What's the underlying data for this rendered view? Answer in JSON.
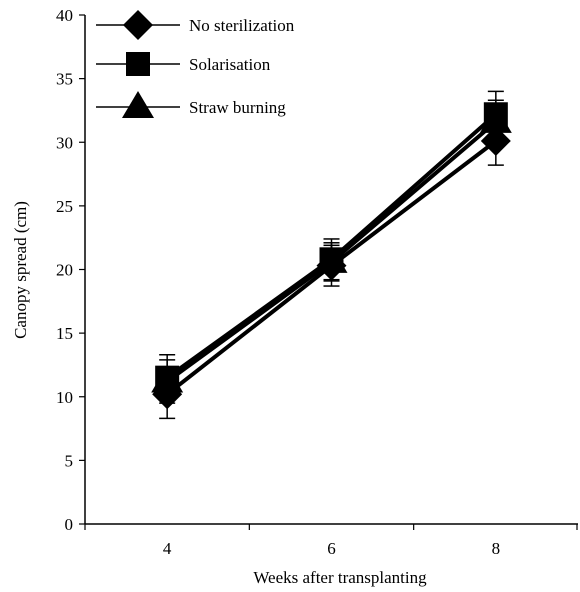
{
  "chart_data": {
    "type": "line",
    "xlabel": "Weeks after transplanting",
    "ylabel": "Canopy spread (cm)",
    "x": [
      4,
      6,
      8
    ],
    "x_tick_labels": [
      "4",
      "6",
      "8"
    ],
    "ylim": [
      0,
      40
    ],
    "y_ticks": [
      0,
      5,
      10,
      15,
      20,
      25,
      30,
      35,
      40
    ],
    "y_tick_labels": [
      "0",
      "5",
      "10",
      "15",
      "20",
      "25",
      "30",
      "35",
      "40"
    ],
    "grid": false,
    "legend_position": "top-left",
    "series": [
      {
        "name": "No sterilization",
        "marker": "diamond",
        "values": [
          10.2,
          20.3,
          30.1
        ],
        "errors": [
          1.9,
          1.6,
          1.9
        ]
      },
      {
        "name": "Solarisation",
        "marker": "square",
        "values": [
          11.5,
          20.8,
          32.2
        ],
        "errors": [
          1.8,
          1.6,
          1.8
        ]
      },
      {
        "name": "Straw burning",
        "marker": "triangle",
        "values": [
          11.2,
          20.6,
          31.6
        ],
        "errors": [
          1.7,
          1.5,
          1.7
        ]
      }
    ]
  }
}
